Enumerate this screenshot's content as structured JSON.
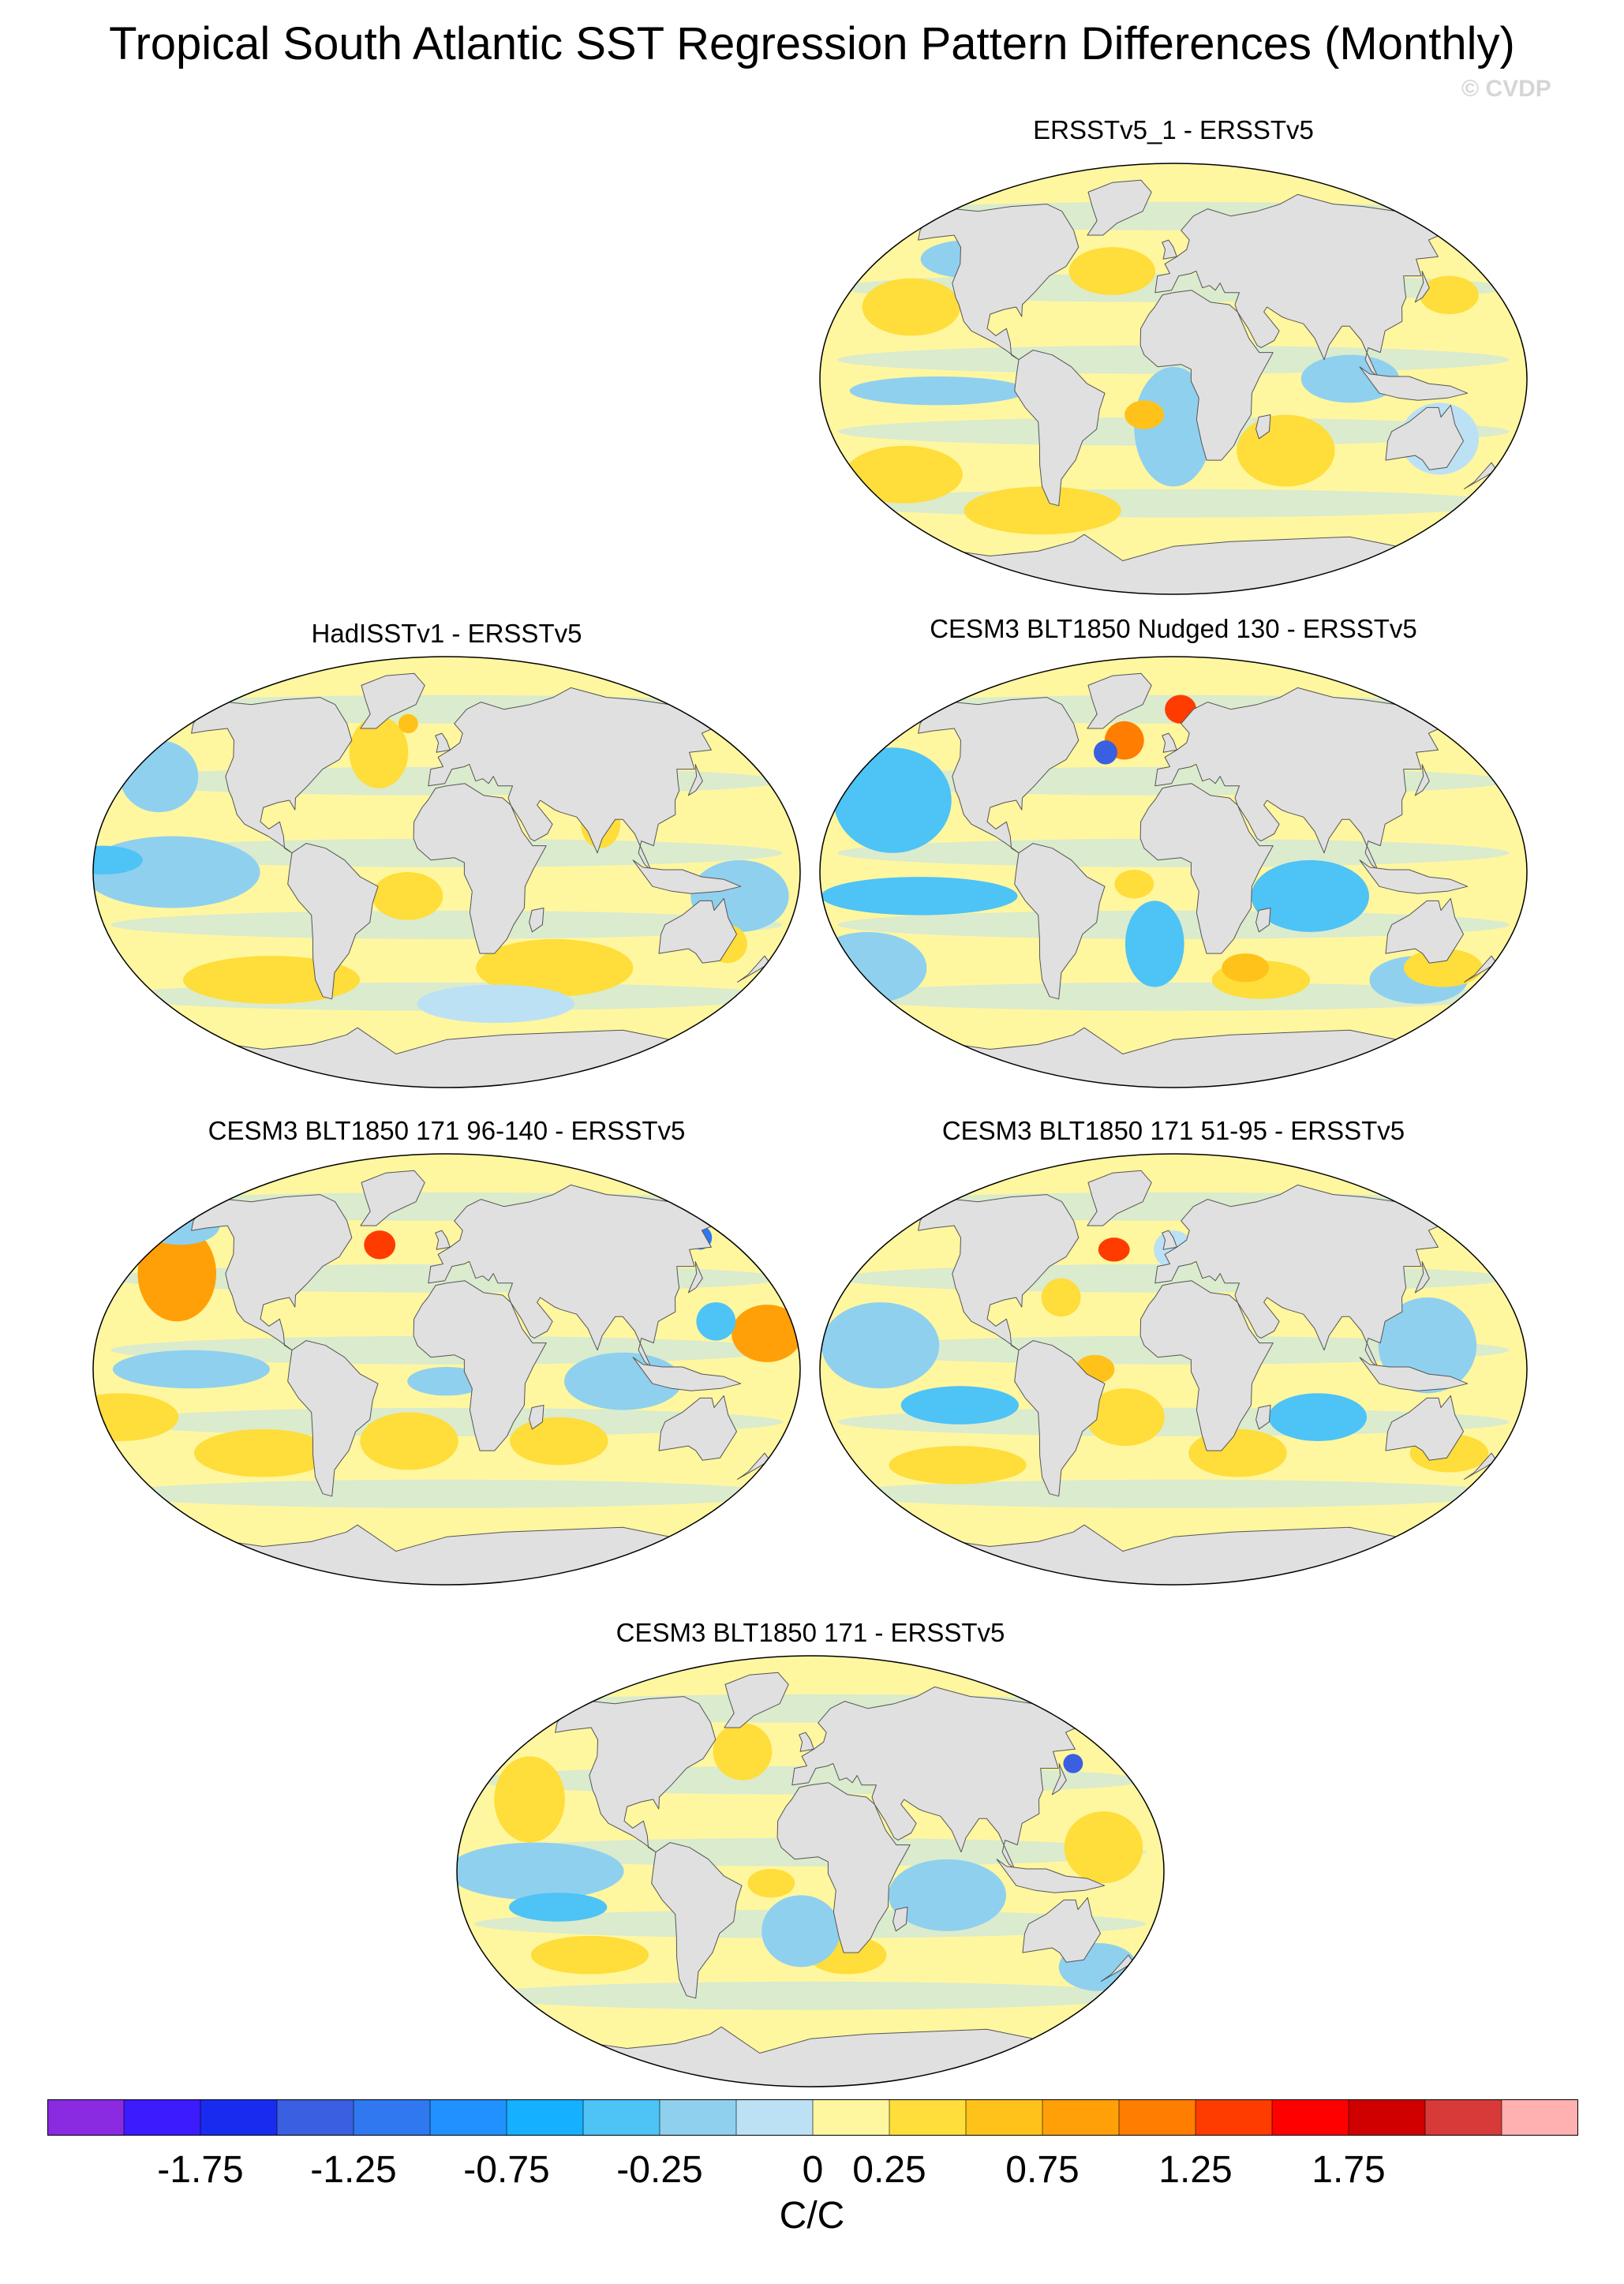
{
  "title": "Tropical South Atlantic SST Regression Pattern Differences (Monthly)",
  "watermark": "© CVDP",
  "panels": [
    {
      "title": "ERSSTv5_1 - ERSSTv5"
    },
    {
      "title": "HadISSTv1 - ERSSTv5"
    },
    {
      "title": "CESM3 BLT1850 Nudged 130 - ERSSTv5"
    },
    {
      "title": "CESM3 BLT1850 171 96-140 - ERSSTv5"
    },
    {
      "title": "CESM3 BLT1850 171 51-95 - ERSSTv5"
    },
    {
      "title": "CESM3 BLT1850 171 - ERSSTv5"
    }
  ],
  "colorbar": {
    "colors": [
      "#8a2be2",
      "#3d1bff",
      "#1a2bf0",
      "#3a5fe0",
      "#2f78f0",
      "#2191ff",
      "#15b0ff",
      "#4ec3f5",
      "#8fd0ee",
      "#bce1f4",
      "#fff6a0",
      "#ffdd3a",
      "#ffc21a",
      "#ffa008",
      "#ff7d00",
      "#ff3c00",
      "#ff0000",
      "#d00000",
      "#d83a3a",
      "#ffb0b0"
    ],
    "tick_labels": [
      "-1.75",
      "-1.25",
      "-0.75",
      "-0.25",
      "0",
      "0.25",
      "0.75",
      "1.25",
      "1.75"
    ],
    "units": "C/C"
  }
}
